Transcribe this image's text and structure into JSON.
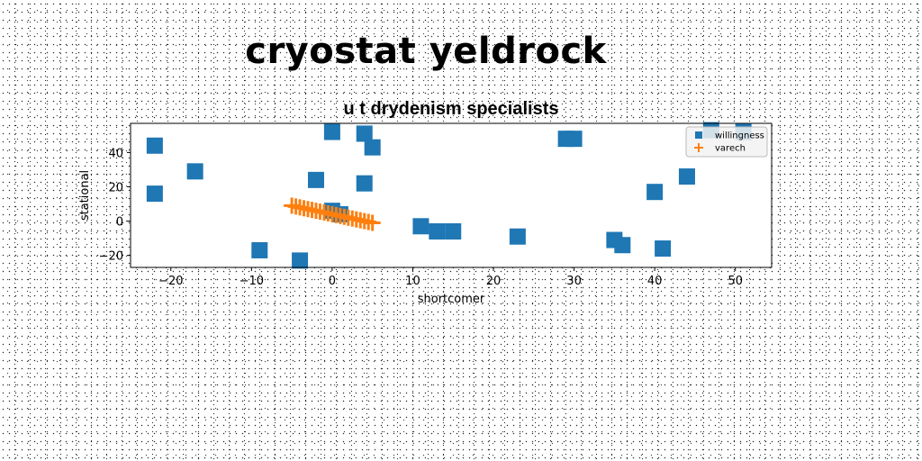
{
  "header": {
    "title": "cryostat yeldrock"
  },
  "chart_data": {
    "type": "scatter",
    "title": "u t drydenism specialists",
    "xlabel": "shortcomer",
    "ylabel": "stational",
    "xlim": [
      -25,
      54.5
    ],
    "ylim": [
      -27,
      57
    ],
    "xticks": [
      -20,
      -10,
      0,
      10,
      20,
      30,
      40,
      50
    ],
    "yticks": [
      -20,
      0,
      20,
      40
    ],
    "grid": false,
    "legend_position": "top-right",
    "series": [
      {
        "name": "willingness",
        "marker": "square",
        "color": "#1f77b4",
        "points": [
          {
            "x": -22,
            "y": 44
          },
          {
            "x": -22,
            "y": 16
          },
          {
            "x": -17,
            "y": 29
          },
          {
            "x": -9,
            "y": -17
          },
          {
            "x": -4,
            "y": -23
          },
          {
            "x": -2,
            "y": 24
          },
          {
            "x": 0,
            "y": 52
          },
          {
            "x": 0,
            "y": 6
          },
          {
            "x": 1,
            "y": 4
          },
          {
            "x": 4,
            "y": 51
          },
          {
            "x": 5,
            "y": 43
          },
          {
            "x": 4,
            "y": 22
          },
          {
            "x": 11,
            "y": -3
          },
          {
            "x": 13,
            "y": -6
          },
          {
            "x": 15,
            "y": -6
          },
          {
            "x": 23,
            "y": -9
          },
          {
            "x": 29,
            "y": 48
          },
          {
            "x": 30,
            "y": 48
          },
          {
            "x": 35,
            "y": -11
          },
          {
            "x": 36,
            "y": -14
          },
          {
            "x": 40,
            "y": 17
          },
          {
            "x": 41,
            "y": -16
          },
          {
            "x": 44,
            "y": 26
          },
          {
            "x": 47,
            "y": 53
          },
          {
            "x": 51,
            "y": 52
          }
        ]
      },
      {
        "name": "varech",
        "marker": "plus",
        "color": "#ff7f0e",
        "points": [
          {
            "x": -5,
            "y": 9
          },
          {
            "x": -4.5,
            "y": 8.5
          },
          {
            "x": -4,
            "y": 8
          },
          {
            "x": -3.5,
            "y": 7.5
          },
          {
            "x": -3,
            "y": 7
          },
          {
            "x": -2.5,
            "y": 6.5
          },
          {
            "x": -2,
            "y": 6
          },
          {
            "x": -1.5,
            "y": 5.5
          },
          {
            "x": -1,
            "y": 5
          },
          {
            "x": -0.5,
            "y": 4.5
          },
          {
            "x": 0,
            "y": 4
          },
          {
            "x": 0.5,
            "y": 3.5
          },
          {
            "x": 1,
            "y": 3
          },
          {
            "x": 1.5,
            "y": 2.5
          },
          {
            "x": 2,
            "y": 2
          },
          {
            "x": 2.5,
            "y": 1.5
          },
          {
            "x": 3,
            "y": 1
          },
          {
            "x": 3.5,
            "y": 0.5
          },
          {
            "x": 4,
            "y": 0
          },
          {
            "x": 4.5,
            "y": -0.5
          },
          {
            "x": 5,
            "y": -1
          }
        ]
      }
    ]
  }
}
